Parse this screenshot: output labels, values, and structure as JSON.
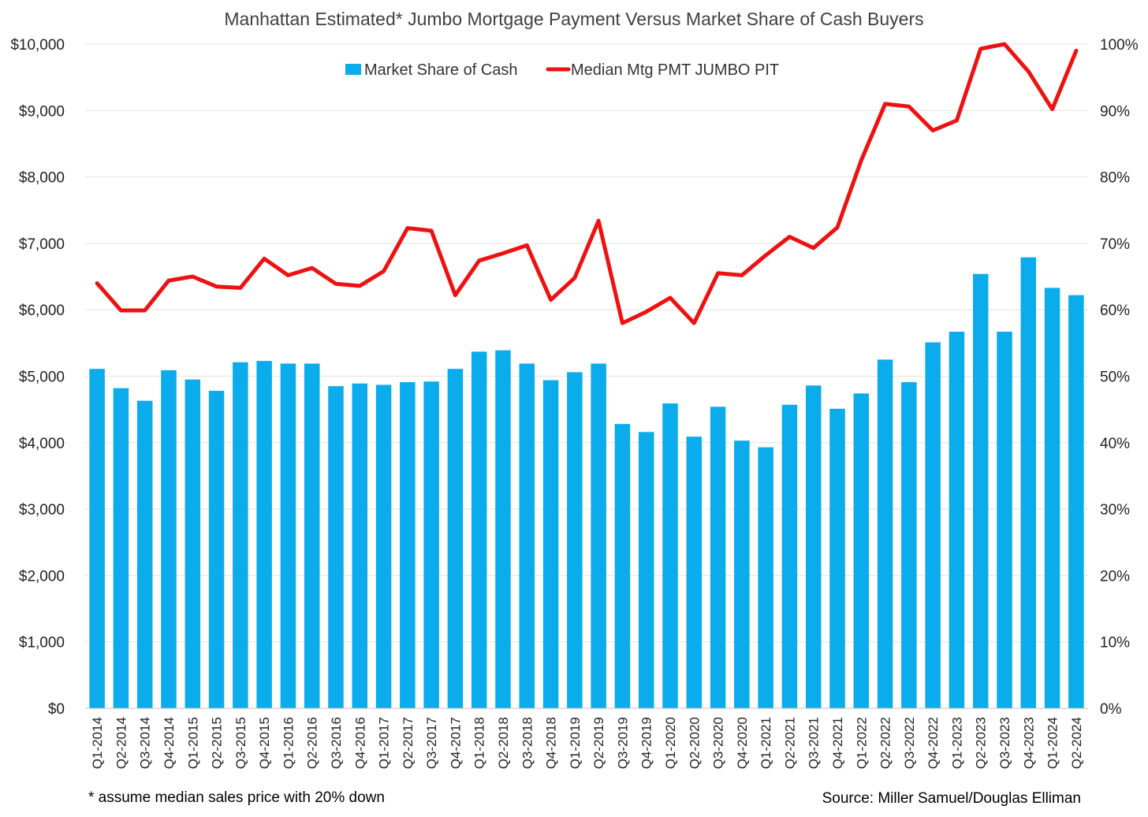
{
  "chart_data": {
    "type": "bar",
    "title": "Manhattan Estimated* Jumbo Mortgage Payment Versus Market Share of Cash Buyers",
    "footnote": "* assume median sales price with 20% down",
    "source": "Source: Miller Samuel/Douglas Elliman",
    "categories": [
      "Q1-2014",
      "Q2-2014",
      "Q3-2014",
      "Q4-2014",
      "Q1-2015",
      "Q2-2015",
      "Q3-2015",
      "Q4-2015",
      "Q1-2016",
      "Q2-2016",
      "Q3-2016",
      "Q4-2016",
      "Q1-2017",
      "Q2-2017",
      "Q3-2017",
      "Q4-2017",
      "Q1-2018",
      "Q2-2018",
      "Q3-2018",
      "Q4-2018",
      "Q1-2019",
      "Q2-2019",
      "Q3-2019",
      "Q4-2019",
      "Q1-2020",
      "Q2-2020",
      "Q3-2020",
      "Q4-2020",
      "Q1-2021",
      "Q2-2021",
      "Q3-2021",
      "Q4-2021",
      "Q1-2022",
      "Q2-2022",
      "Q3-2022",
      "Q4-2022",
      "Q1-2023",
      "Q2-2023",
      "Q3-2023",
      "Q4-2023",
      "Q1-2024",
      "Q2-2024"
    ],
    "series": [
      {
        "name": "Market Share of Cash",
        "type": "bar",
        "axis": "right",
        "color": "#0AACEB",
        "values": [
          51.1,
          48.2,
          46.3,
          50.9,
          49.5,
          47.8,
          52.1,
          52.3,
          51.9,
          51.9,
          48.5,
          48.9,
          48.7,
          49.1,
          49.2,
          51.1,
          53.7,
          53.9,
          51.9,
          49.4,
          50.6,
          51.9,
          42.8,
          41.6,
          45.9,
          40.9,
          45.4,
          40.3,
          39.3,
          45.7,
          48.6,
          45.1,
          47.4,
          52.5,
          49.1,
          55.1,
          56.7,
          65.4,
          56.7,
          67.9,
          63.3,
          62.2
        ]
      },
      {
        "name": "Median Mtg PMT JUMBO PIT",
        "type": "line",
        "axis": "left",
        "color": "#EE1111",
        "values": [
          6400,
          5990,
          5990,
          6440,
          6500,
          6350,
          6330,
          6770,
          6520,
          6630,
          6390,
          6360,
          6580,
          7230,
          7190,
          6220,
          6740,
          6850,
          6970,
          6150,
          6480,
          7340,
          5800,
          5970,
          6180,
          5800,
          6550,
          6520,
          6820,
          7100,
          6930,
          7240,
          8250,
          9100,
          9060,
          8700,
          8850,
          9930,
          10000,
          9590,
          9020,
          9900
        ]
      }
    ],
    "y_left": {
      "ylim": [
        0,
        10000
      ],
      "tick_values": [
        0,
        1000,
        2000,
        3000,
        4000,
        5000,
        6000,
        7000,
        8000,
        9000,
        10000
      ],
      "tick_labels": [
        "$0",
        "$1,000",
        "$2,000",
        "$3,000",
        "$4,000",
        "$5,000",
        "$6,000",
        "$7,000",
        "$8,000",
        "$9,000",
        "$10,000"
      ]
    },
    "y_right": {
      "ylim": [
        0,
        100
      ],
      "tick_values": [
        0,
        10,
        20,
        30,
        40,
        50,
        60,
        70,
        80,
        90,
        100
      ],
      "tick_labels": [
        "0%",
        "10%",
        "20%",
        "30%",
        "40%",
        "50%",
        "60%",
        "70%",
        "80%",
        "90%",
        "100%"
      ]
    },
    "xlabel": "",
    "grid": true,
    "legend_position": "top-center"
  }
}
